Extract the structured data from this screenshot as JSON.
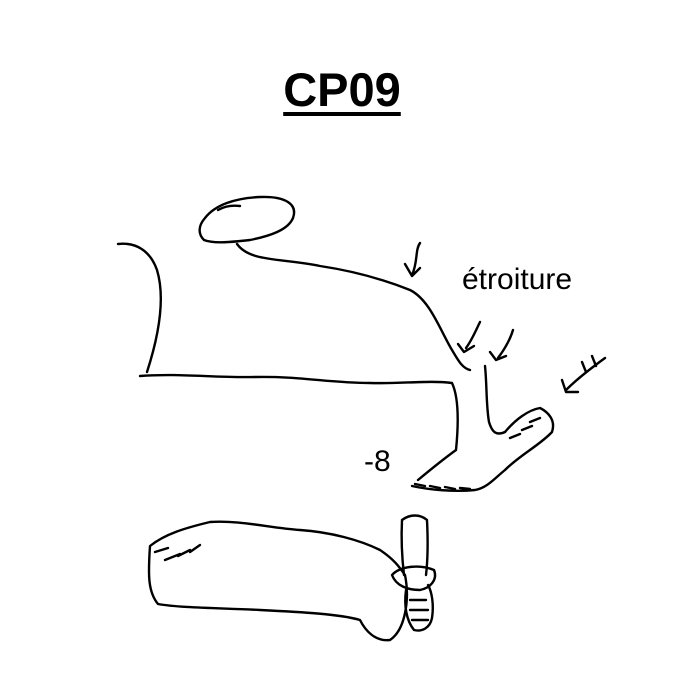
{
  "title": "CP09",
  "labels": {
    "narrowing": "étroiture",
    "depth": "-8"
  },
  "icons": {
    "flow_arrows": "water-flow-arrow"
  },
  "colors": {
    "ink": "#000000",
    "background": "#ffffff"
  }
}
